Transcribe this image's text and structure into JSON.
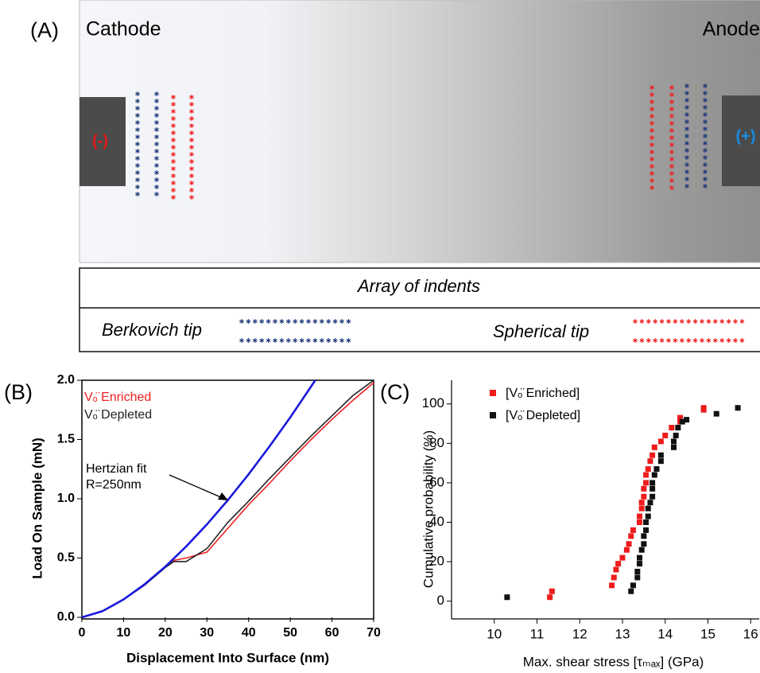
{
  "diagram": {
    "panel": "(A)",
    "cathode": "Cathode",
    "anode": "Anode",
    "cathode_sign": "(-)",
    "anode_sign": "(+)",
    "legend_title": "Array of indents",
    "berkovich": "Berkovich tip",
    "spherical": "Spherical tip"
  },
  "chart_data": [
    {
      "type": "line",
      "panel": "(B)",
      "xlabel": "Displacement Into Surface (nm)",
      "ylabel": "Load On Sample (mN)",
      "xlim": [
        0,
        70
      ],
      "ylim": [
        0,
        2
      ],
      "xticks": [
        0,
        10,
        20,
        30,
        40,
        50,
        60,
        70
      ],
      "yticks": [
        {
          "value": 0,
          "label": "0.0"
        },
        {
          "value": 0.5,
          "label": "0.5"
        },
        {
          "value": 1,
          "label": "1.0"
        },
        {
          "value": 1.5,
          "label": "1.5"
        },
        {
          "value": 2,
          "label": "2.0"
        }
      ],
      "annotation": [
        "Hertzian fit",
        "R=250nm"
      ],
      "x": [
        0,
        5,
        10,
        15,
        20,
        22,
        25,
        30,
        35,
        40,
        45,
        50,
        55,
        60,
        65,
        70
      ],
      "series": [
        {
          "name": "Vₒ̈ Enriched",
          "color": "#ee2020",
          "values": [
            0,
            0.05,
            0.15,
            0.27,
            0.42,
            0.48,
            0.5,
            0.55,
            0.75,
            0.95,
            1.13,
            1.32,
            1.5,
            1.67,
            1.83,
            1.98
          ]
        },
        {
          "name": "Vₒ̈ Depleted",
          "color": "#222222",
          "values": [
            0,
            0.05,
            0.15,
            0.27,
            0.42,
            0.47,
            0.47,
            0.58,
            0.8,
            0.98,
            1.17,
            1.35,
            1.53,
            1.7,
            1.87,
            2.0
          ]
        },
        {
          "color": "#1a1adc",
          "x": [
            0,
            5,
            10,
            15,
            20,
            25,
            30,
            35,
            40,
            45,
            50,
            56
          ],
          "values": [
            0,
            0.053,
            0.151,
            0.277,
            0.427,
            0.597,
            0.784,
            0.988,
            1.207,
            1.441,
            1.687,
            2.0
          ]
        }
      ]
    },
    {
      "type": "scatter",
      "panel": "(C)",
      "xlabel": "Max. shear stress [τₘₐₓ] (GPa)",
      "ylabel": "Cumulative probability (%)",
      "xlim": [
        9,
        16.2
      ],
      "ylim": [
        -9,
        112
      ],
      "xticks": [
        10,
        11,
        12,
        13,
        14,
        15,
        16
      ],
      "yticks": [
        0,
        20,
        40,
        60,
        80,
        100
      ],
      "series": [
        {
          "name": "[Vₒ̈ Enriched]",
          "color": "#ee1c1c",
          "x": [
            11.3,
            11.35,
            12.75,
            12.8,
            12.85,
            12.9,
            13.0,
            13.1,
            13.15,
            13.2,
            13.25,
            13.4,
            13.4,
            13.45,
            13.45,
            13.5,
            13.5,
            13.55,
            13.55,
            13.6,
            13.65,
            13.7,
            13.75,
            13.9,
            14.0,
            14.15,
            14.35,
            14.35,
            14.9,
            14.9
          ],
          "values": [
            2,
            5,
            8,
            12,
            16,
            19,
            22,
            26,
            29,
            33,
            36,
            40,
            43,
            47,
            50,
            53,
            57,
            60,
            64,
            67,
            71,
            74,
            78,
            81,
            84,
            88,
            91,
            93,
            97,
            98
          ]
        },
        {
          "name": "[Vₒ̈ Depleted]",
          "color": "#111111",
          "x": [
            10.3,
            13.2,
            13.25,
            13.35,
            13.35,
            13.4,
            13.4,
            13.45,
            13.5,
            13.5,
            13.55,
            13.55,
            13.6,
            13.6,
            13.65,
            13.7,
            13.7,
            13.7,
            13.75,
            13.8,
            13.9,
            13.9,
            14.2,
            14.2,
            14.25,
            14.3,
            14.4,
            14.5,
            15.2,
            15.7
          ],
          "values": [
            2,
            5,
            8,
            12,
            15,
            19,
            22,
            26,
            29,
            33,
            36,
            40,
            43,
            47,
            50,
            53,
            57,
            60,
            64,
            67,
            71,
            74,
            78,
            81,
            84,
            88,
            91,
            92,
            95,
            98
          ]
        }
      ]
    }
  ]
}
